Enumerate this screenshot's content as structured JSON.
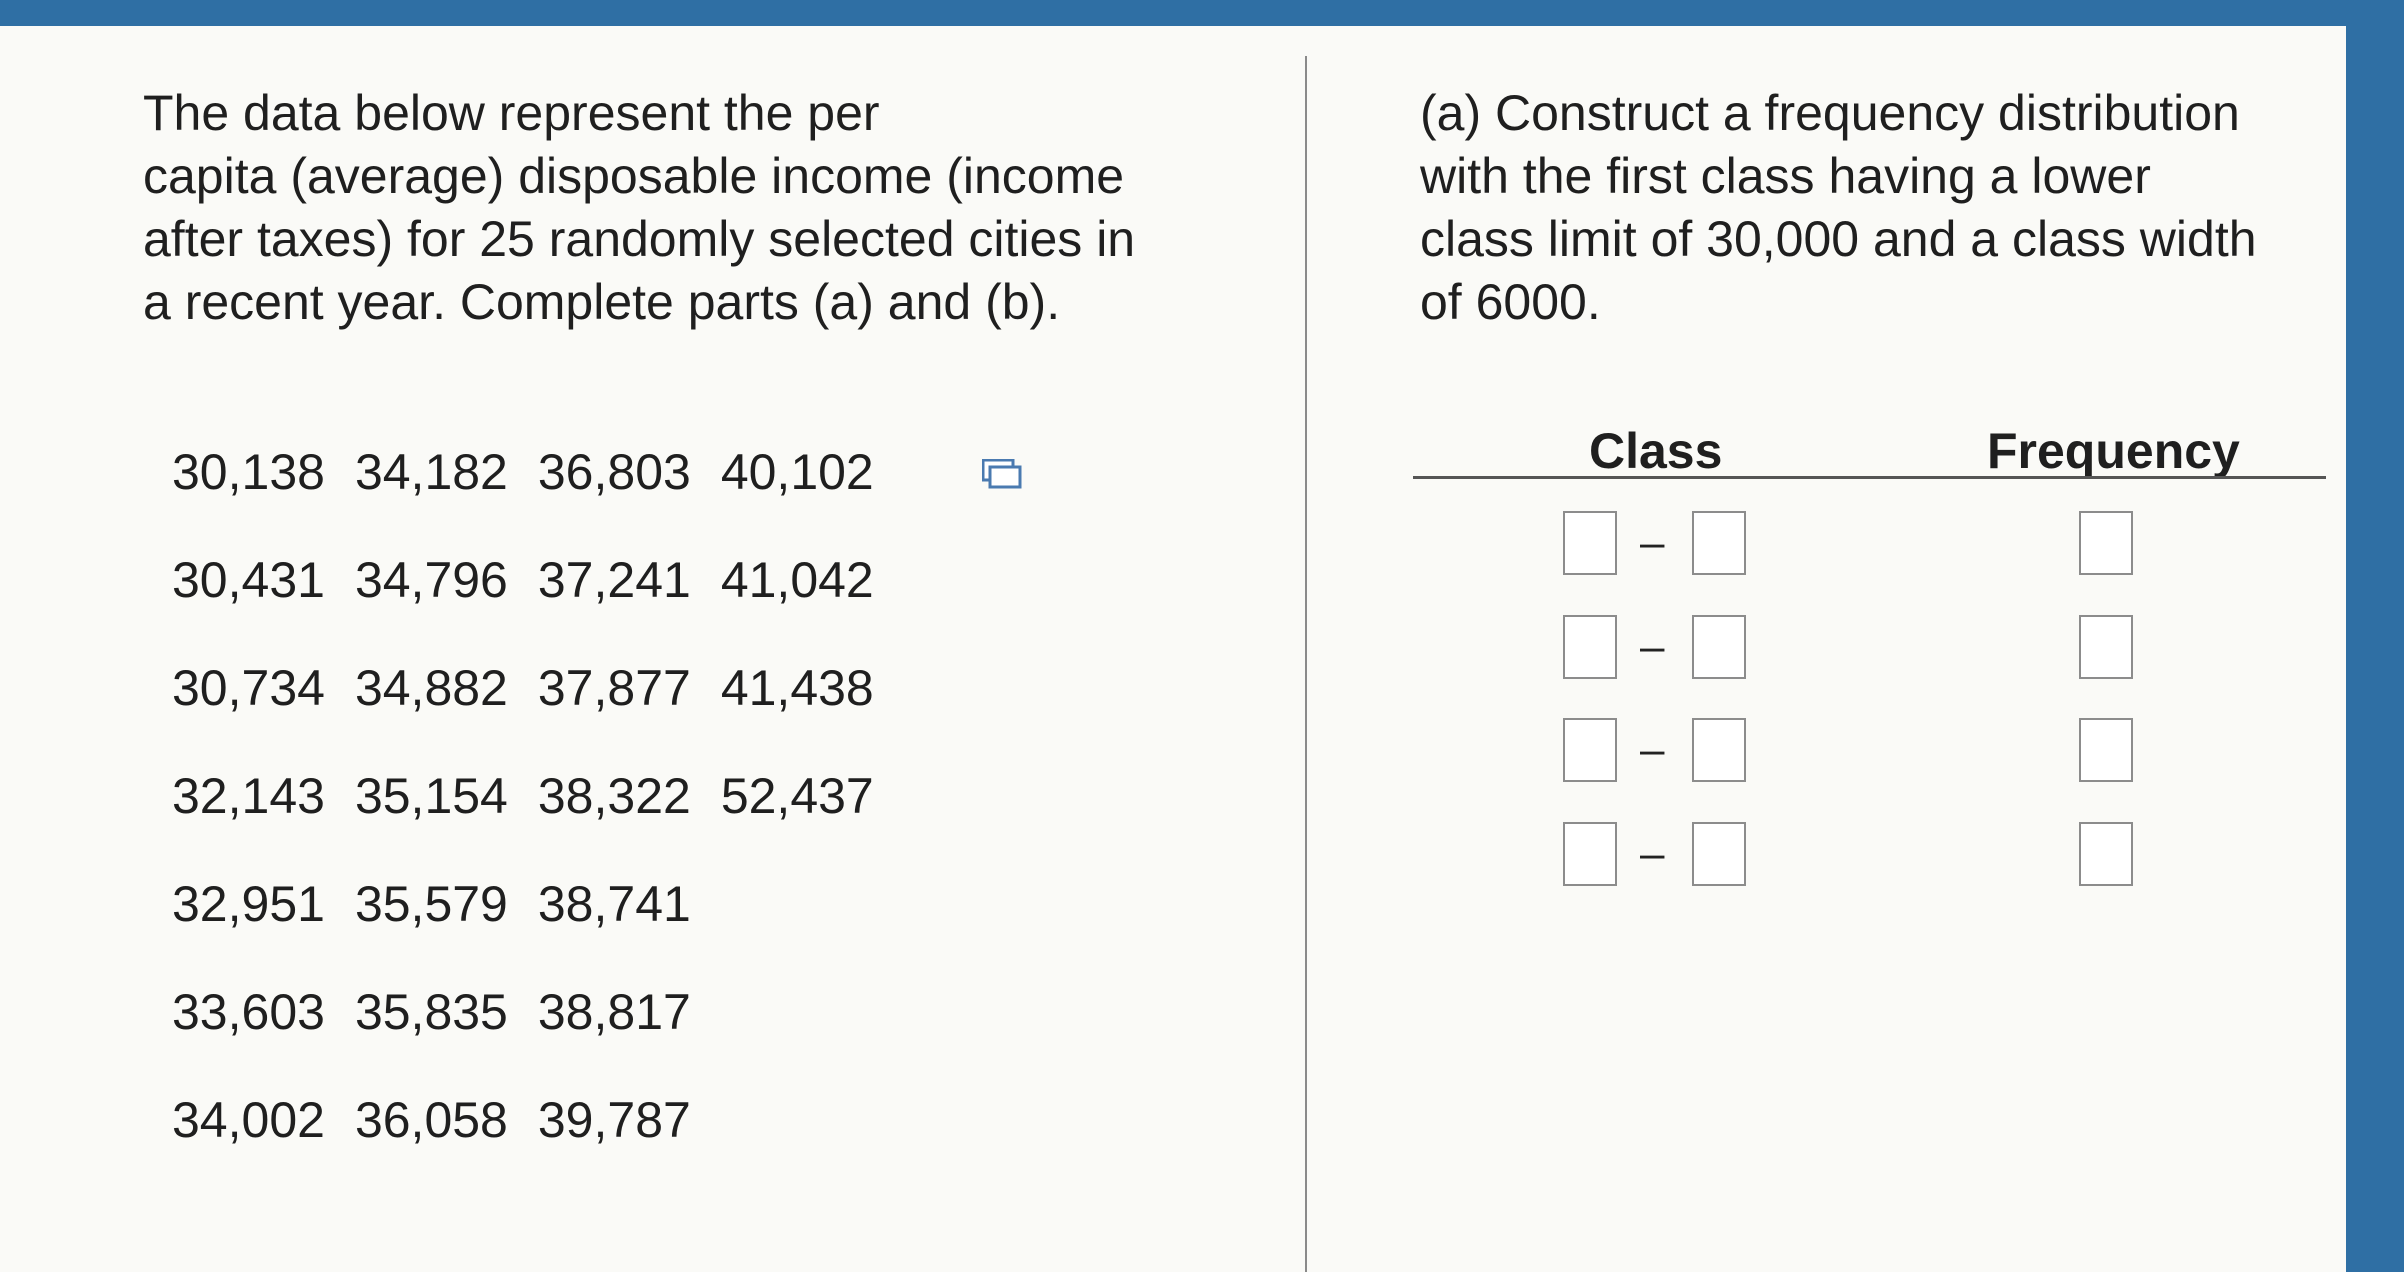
{
  "problem": {
    "lines": [
      "The data below represent the per",
      "capita (average) disposable income (income",
      "after taxes) for 25 randomly selected cities in",
      "a recent year. Complete parts (a) and (b)."
    ]
  },
  "data_rows": [
    [
      "30,138",
      "34,182",
      "36,803",
      "40,102"
    ],
    [
      "30,431",
      "34,796",
      "37,241",
      "41,042"
    ],
    [
      "30,734",
      "34,882",
      "37,877",
      "41,438"
    ],
    [
      "32,143",
      "35,154",
      "38,322",
      "52,437"
    ],
    [
      "32,951",
      "35,579",
      "38,741",
      ""
    ],
    [
      "33,603",
      "35,835",
      "38,817",
      ""
    ],
    [
      "34,002",
      "36,058",
      "39,787",
      ""
    ]
  ],
  "copy_icon": {
    "icon": "copy-data-icon"
  },
  "part_a": {
    "lines": [
      "(a) Construct a frequency distribution",
      "with the first class having a lower",
      "class limit of 30,000 and a class width",
      "of 6000."
    ]
  },
  "table": {
    "class_header": "Class",
    "frequency_header": "Frequency",
    "rows": [
      {
        "lower": "",
        "dash": "–",
        "upper": "",
        "frequency": ""
      },
      {
        "lower": "",
        "dash": "–",
        "upper": "",
        "frequency": ""
      },
      {
        "lower": "",
        "dash": "–",
        "upper": "",
        "frequency": ""
      },
      {
        "lower": "",
        "dash": "–",
        "upper": "",
        "frequency": ""
      }
    ]
  },
  "colors": {
    "frame_blue": "#2f6fa4",
    "background": "#fafaf7",
    "input_border": "#8c8c8c"
  }
}
